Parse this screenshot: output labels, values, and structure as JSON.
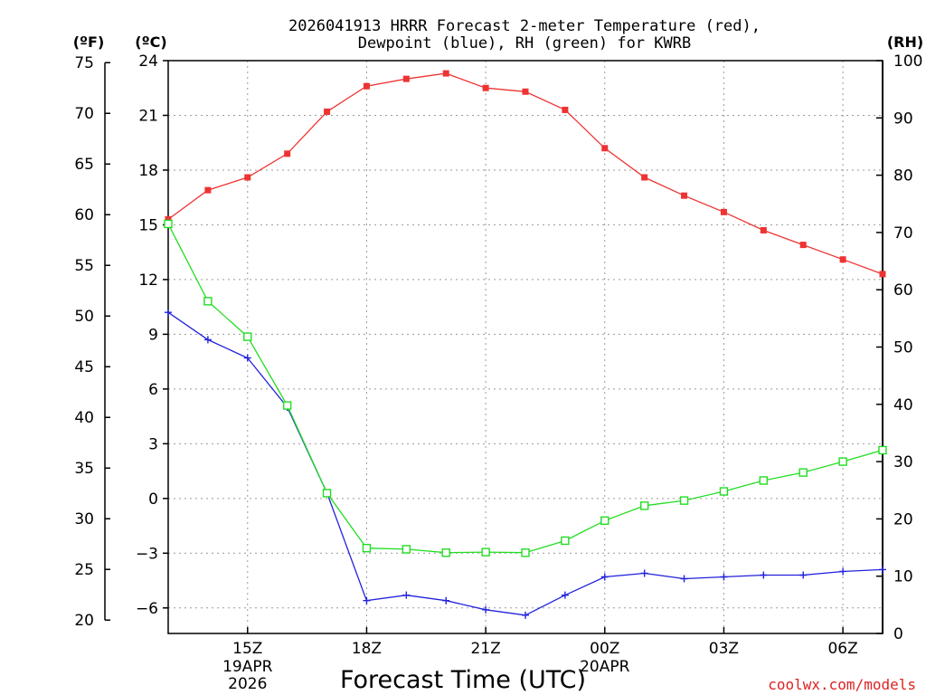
{
  "chart_data": {
    "type": "line",
    "title_line1": "2026041913 HRRR Forecast 2-meter Temperature (red),",
    "title_line2": "Dewpoint (blue), RH (green) for KWRB",
    "xlabel": "Forecast Time (UTC)",
    "credit": "coolwx.com/models",
    "unit_f": "(ºF)",
    "unit_c": "(ºC)",
    "unit_rh": "(RH)",
    "x_hours": [
      13,
      14,
      15,
      16,
      17,
      18,
      19,
      20,
      21,
      22,
      23,
      24,
      25,
      26,
      27,
      28,
      29,
      30,
      31
    ],
    "xlim": [
      13,
      31
    ],
    "c_axis": {
      "ylim": [
        -7.4,
        24
      ],
      "ticks": [
        24,
        21,
        18,
        15,
        12,
        9,
        6,
        3,
        0,
        -3,
        -6
      ]
    },
    "f_axis": {
      "ticks": [
        75,
        70,
        65,
        60,
        55,
        50,
        45,
        40,
        35,
        30,
        25,
        20
      ]
    },
    "rh_axis": {
      "ylim": [
        0,
        100
      ],
      "ticks": [
        100,
        90,
        80,
        70,
        60,
        50,
        40,
        30,
        20,
        10,
        0
      ]
    },
    "x_ticks": [
      {
        "hour": 15,
        "label": "15Z",
        "date1": "19APR",
        "date2": "2026"
      },
      {
        "hour": 18,
        "label": "18Z"
      },
      {
        "hour": 21,
        "label": "21Z"
      },
      {
        "hour": 24,
        "label": "00Z",
        "date1": "20APR"
      },
      {
        "hour": 27,
        "label": "03Z"
      },
      {
        "hour": 30,
        "label": "06Z"
      }
    ],
    "series": [
      {
        "name": "Temperature",
        "color": "#ee3333",
        "marker": "filled-square",
        "axis": "c",
        "values": [
          15.3,
          16.9,
          17.6,
          18.9,
          21.2,
          22.6,
          23.0,
          23.3,
          22.5,
          22.3,
          21.3,
          19.2,
          17.6,
          16.6,
          15.7,
          14.7,
          13.9,
          13.1,
          12.3
        ]
      },
      {
        "name": "Dewpoint",
        "color": "#2222dd",
        "marker": "plus",
        "axis": "c",
        "values": [
          10.2,
          8.7,
          7.7,
          5.0,
          0.3,
          -5.6,
          -5.3,
          -5.6,
          -6.1,
          -6.4,
          -5.3,
          -4.3,
          -4.1,
          -4.4,
          -4.3,
          -4.2,
          -4.2,
          -4.0,
          -3.9
        ]
      },
      {
        "name": "RH",
        "color": "#22dd22",
        "marker": "open-square",
        "axis": "rh",
        "values": [
          71.5,
          58.0,
          51.8,
          39.8,
          24.5,
          14.9,
          14.7,
          14.1,
          14.2,
          14.1,
          16.2,
          19.7,
          22.3,
          23.2,
          24.8,
          26.7,
          28.1,
          30.0,
          32.0
        ]
      }
    ]
  }
}
